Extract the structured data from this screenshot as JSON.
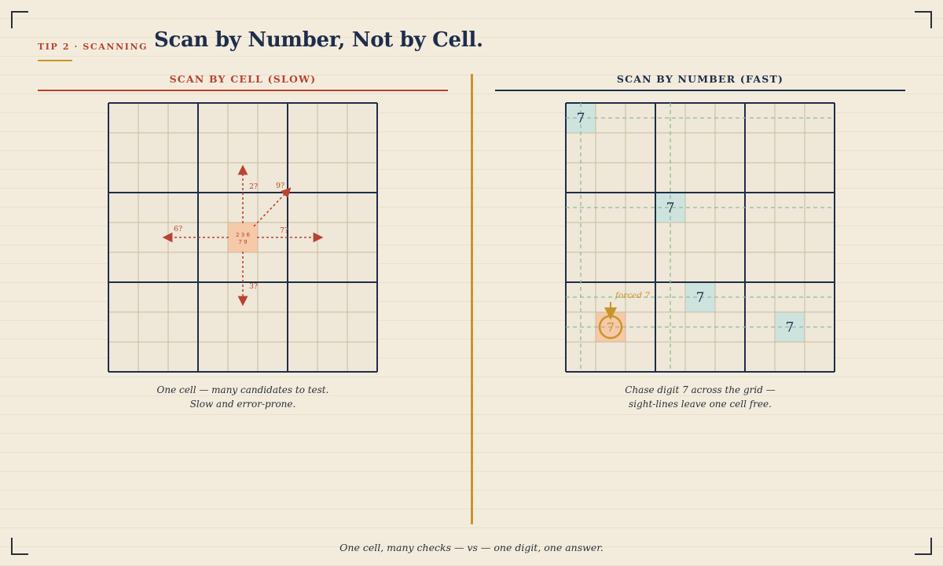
{
  "header": {
    "kicker": "TIP 2 · SCANNING",
    "title": "Scan by Number, Not by Cell."
  },
  "left_panel": {
    "heading": "SCAN BY CELL (SLOW)",
    "target_cell": {
      "row": 4,
      "col": 4,
      "candidates_line1": "2 3 6",
      "candidates_line2": "7 9"
    },
    "probes": [
      {
        "direction": "up",
        "label": "2?"
      },
      {
        "direction": "up-right",
        "label": "9?"
      },
      {
        "direction": "left",
        "label": "6?"
      },
      {
        "direction": "right",
        "label": "7?"
      },
      {
        "direction": "down",
        "label": "3?"
      }
    ],
    "caption_line1": "One cell — many candidates to test.",
    "caption_line2": "Slow and error-prone."
  },
  "right_panel": {
    "heading": "SCAN BY NUMBER (FAST)",
    "digit": "7",
    "placed": [
      {
        "row": 0,
        "col": 0
      },
      {
        "row": 3,
        "col": 3
      },
      {
        "row": 6,
        "col": 4
      },
      {
        "row": 7,
        "col": 7
      }
    ],
    "forced_cell": {
      "row": 7,
      "col": 1
    },
    "forced_label": "forced 7",
    "caption_line1": "Chase digit 7 across the grid —",
    "caption_line2": "sight-lines leave one cell free."
  },
  "footer": "One cell, many checks — vs — one digit, one answer.",
  "colors": {
    "background": "#f3ecdd",
    "navy": "#1e2d4a",
    "red": "#b8432f",
    "gold": "#c9952a",
    "teal_fill": "#cde3de",
    "peach_fill": "#f6c9a8",
    "sightline": "#8fbd9a"
  }
}
